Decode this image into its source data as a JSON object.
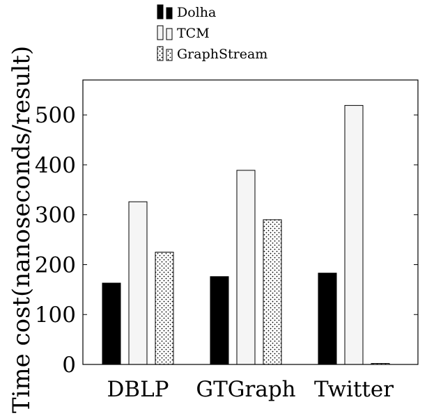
{
  "chart_data": {
    "type": "bar",
    "ylabel": "Time cost(nanoseconds/result)",
    "categories": [
      "DBLP",
      "GTGraph",
      "Twitter"
    ],
    "ylim": [
      0,
      570
    ],
    "yticks": [
      0,
      100,
      200,
      300,
      400,
      500
    ],
    "grid": false,
    "legend_position": "top",
    "series": [
      {
        "name": "Dolha",
        "values": [
          163,
          176,
          183
        ],
        "fill": "#000000",
        "pattern": "solid"
      },
      {
        "name": "TCM",
        "values": [
          326,
          389,
          519
        ],
        "fill": "#f5f5f5",
        "pattern": "solid"
      },
      {
        "name": "GraphStream",
        "values": [
          225,
          290,
          2
        ],
        "fill": "#ffffff",
        "pattern": "dots"
      }
    ]
  }
}
